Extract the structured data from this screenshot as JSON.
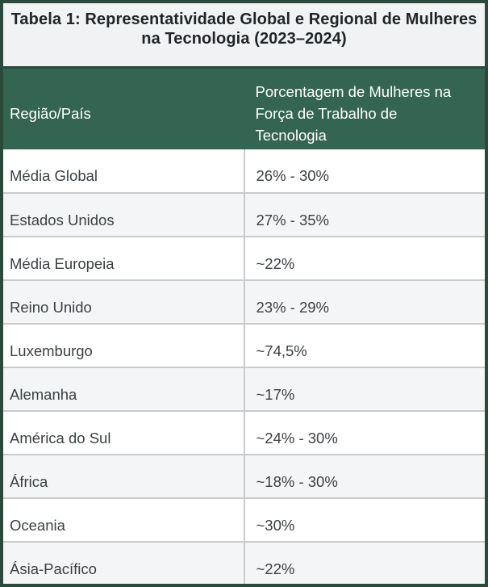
{
  "colors": {
    "border_green": "#2b4a3c",
    "header_green": "#346552",
    "title_bg": "#f1f2f4",
    "stripe_bg": "#f4f5f6",
    "grid_line": "#cbcbcb",
    "title_text": "#212529",
    "body_text": "#3c4043",
    "header_text": "#ffffff"
  },
  "chart_data": {
    "type": "table",
    "title": "Tabela 1: Representatividade Global e Regional de Mulheres na Tecnologia (2023–2024)",
    "title_lines": [
      "Tabela 1: Representatividade Global e Regional de Mulheres",
      "na Tecnologia (2023–2024)"
    ],
    "columns": [
      "Região/País",
      "Porcentagem de Mulheres na Força de Trabalho de Tecnologia"
    ],
    "rows": [
      [
        "Média Global",
        "26% - 30%"
      ],
      [
        "Estados Unidos",
        "27% - 35%"
      ],
      [
        "Média Europeia",
        "~22%"
      ],
      [
        "Reino Unido",
        "23% - 29%"
      ],
      [
        "Luxemburgo",
        "~74,5%"
      ],
      [
        "Alemanha",
        "~17%"
      ],
      [
        "América do Sul",
        "~24% - 30%"
      ],
      [
        "África",
        "~18% - 30%"
      ],
      [
        "Oceania",
        "~30%"
      ],
      [
        "Ásia-Pacífico",
        "~22%"
      ]
    ]
  }
}
